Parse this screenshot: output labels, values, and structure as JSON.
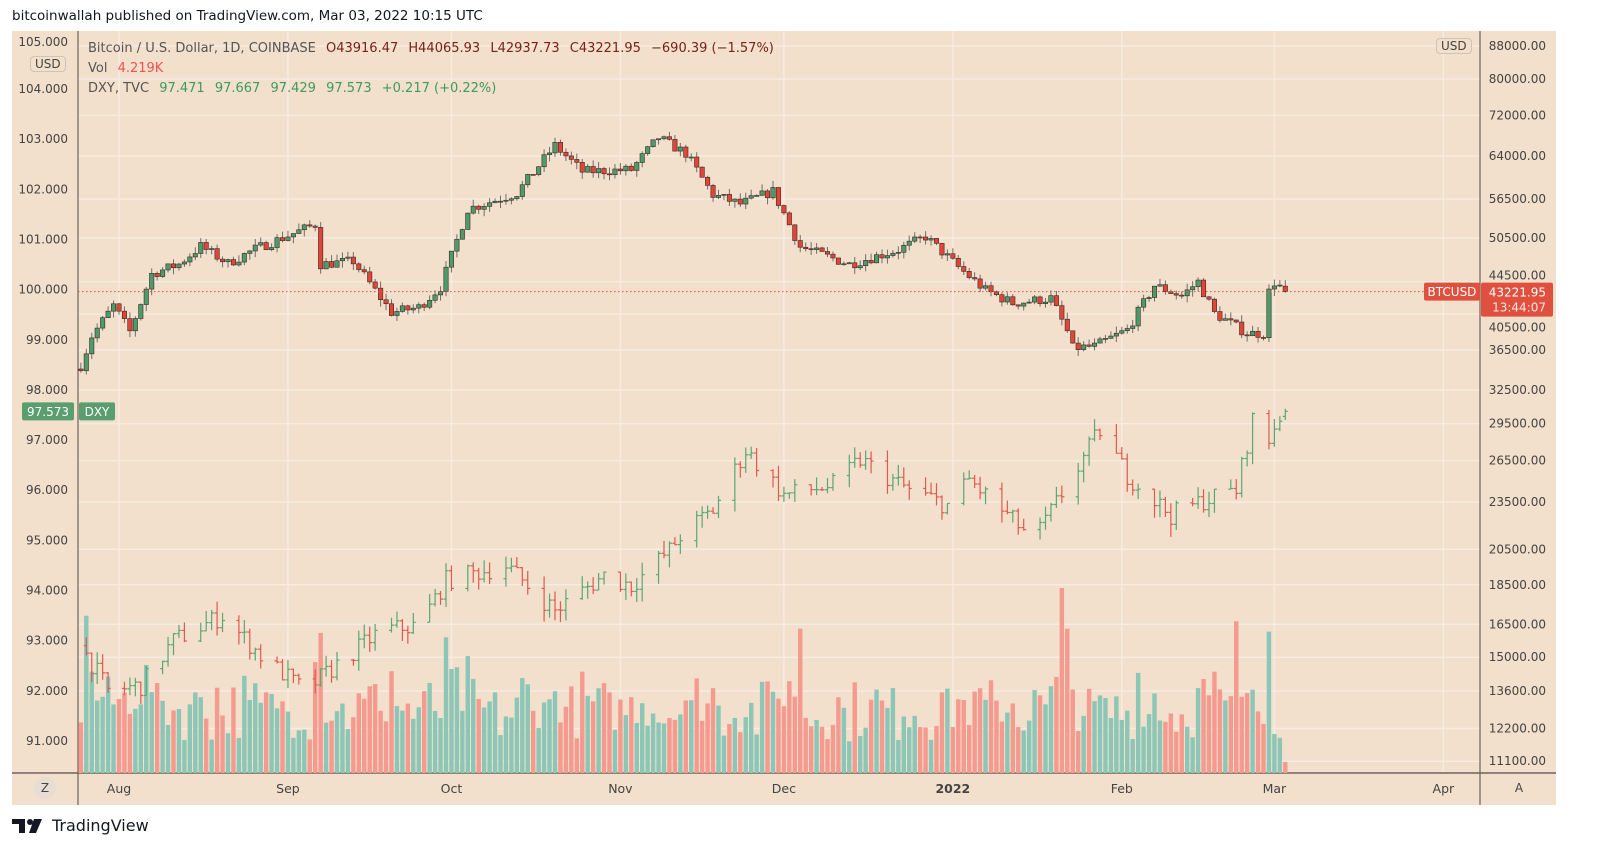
{
  "header": {
    "published": "bitcoinwallah published on TradingView.com, Mar 03, 2022 10:15 UTC"
  },
  "legend": {
    "btc_title": "Bitcoin / U.S. Dollar, 1D, COINBASE",
    "btc_o": "O43916.47",
    "btc_h": "H44065.93",
    "btc_l": "L42937.73",
    "btc_c": "C43221.95",
    "btc_chg": "−690.39 (−1.57%)",
    "vol_label": "Vol",
    "vol_value": "4.219K",
    "dxy_title": "DXY, TVC",
    "dxy_o": "97.471",
    "dxy_h": "97.667",
    "dxy_l": "97.429",
    "dxy_c": "97.573",
    "dxy_chg": "+0.217 (+0.22%)"
  },
  "scale_labels": {
    "left_currency": "USD",
    "right_currency": "USD",
    "z_button": "Z",
    "a_button": "A"
  },
  "price_labels": {
    "btc_symbol": "BTCUSD",
    "btc_last": "43221.95",
    "btc_countdown": "13:44:07",
    "dxy_last": "97.573",
    "dxy_symbol": "DXY"
  },
  "footer": {
    "brand": "TradingView"
  },
  "colors": {
    "bg": "#f2dfcc",
    "up": "#4d9b6b",
    "down": "#e0453a",
    "vol_up": "#8cc6b6",
    "vol_down": "#f49a8e",
    "dxy_up": "#5aa872",
    "dxy_down": "#e05a4f",
    "last": "#e0503f"
  },
  "chart_data": {
    "type": "candlestick",
    "start_date": "2021-07-25",
    "end_date": "2022-03-03",
    "x_ticks": [
      {
        "label": "Aug",
        "day": 7
      },
      {
        "label": "Sep",
        "day": 38
      },
      {
        "label": "Oct",
        "day": 68
      },
      {
        "label": "Nov",
        "day": 99
      },
      {
        "label": "Dec",
        "day": 129
      },
      {
        "label": "2022",
        "day": 160
      },
      {
        "label": "Feb",
        "day": 191
      },
      {
        "label": "Mar",
        "day": 219
      },
      {
        "label": "Apr",
        "day": 250
      }
    ],
    "left_axis": {
      "name": "DXY",
      "ticks": [
        "105.000",
        "104.000",
        "103.000",
        "102.000",
        "101.000",
        "100.000",
        "99.000",
        "98.000",
        "97.000",
        "96.000",
        "95.000",
        "94.000",
        "93.000",
        "92.000",
        "91.000"
      ],
      "range": [
        90.4,
        105.2
      ]
    },
    "right_axis": {
      "name": "BTCUSD",
      "scale": "log",
      "ticks": [
        "88000.00",
        "80000.00",
        "72000.00",
        "64000.00",
        "56500.00",
        "50500.00",
        "44500.00",
        "40500.00",
        "36500.00",
        "32500.00",
        "29500.00",
        "26500.00",
        "23500.00",
        "20500.00",
        "18500.00",
        "16500.00",
        "15000.00",
        "13600.00",
        "12200.00",
        "11100.00"
      ]
    },
    "btc_close_anchors": [
      [
        0,
        34900
      ],
      [
        2,
        38000
      ],
      [
        6,
        41500
      ],
      [
        9,
        38500
      ],
      [
        13,
        45500
      ],
      [
        18,
        46800
      ],
      [
        22,
        49300
      ],
      [
        27,
        46900
      ],
      [
        32,
        48900
      ],
      [
        43,
        52500
      ],
      [
        44,
        46800
      ],
      [
        50,
        47200
      ],
      [
        57,
        40700
      ],
      [
        62,
        41300
      ],
      [
        66,
        43800
      ],
      [
        71,
        54900
      ],
      [
        80,
        57500
      ],
      [
        87,
        66000
      ],
      [
        92,
        61200
      ],
      [
        101,
        61500
      ],
      [
        106,
        67500
      ],
      [
        111,
        64500
      ],
      [
        116,
        57200
      ],
      [
        121,
        55700
      ],
      [
        127,
        57800
      ],
      [
        132,
        49200
      ],
      [
        141,
        46800
      ],
      [
        150,
        48800
      ],
      [
        155,
        50700
      ],
      [
        161,
        46400
      ],
      [
        166,
        43400
      ],
      [
        171,
        41800
      ],
      [
        178,
        42400
      ],
      [
        181,
        38500
      ],
      [
        182,
        36700
      ],
      [
        186,
        36900
      ],
      [
        192,
        38700
      ],
      [
        197,
        44000
      ],
      [
        202,
        42700
      ],
      [
        205,
        44500
      ],
      [
        208,
        40600
      ],
      [
        214,
        38300
      ],
      [
        217,
        38300
      ],
      [
        218,
        43200
      ],
      [
        219,
        44400
      ],
      [
        220,
        43900
      ],
      [
        221,
        43221.95
      ]
    ],
    "dxy_close_anchors": [
      [
        0,
        92.9
      ],
      [
        5,
        92.0
      ],
      [
        11,
        92.1
      ],
      [
        17,
        93.0
      ],
      [
        26,
        93.5
      ],
      [
        33,
        92.7
      ],
      [
        41,
        92.0
      ],
      [
        48,
        92.6
      ],
      [
        55,
        93.2
      ],
      [
        62,
        93.3
      ],
      [
        67,
        94.2
      ],
      [
        78,
        94.5
      ],
      [
        87,
        93.6
      ],
      [
        96,
        94.3
      ],
      [
        101,
        94.1
      ],
      [
        108,
        94.8
      ],
      [
        110,
        95.1
      ],
      [
        116,
        95.6
      ],
      [
        122,
        96.8
      ],
      [
        129,
        95.9
      ],
      [
        138,
        96.1
      ],
      [
        143,
        96.6
      ],
      [
        152,
        96.0
      ],
      [
        159,
        95.7
      ],
      [
        163,
        96.2
      ],
      [
        173,
        95.2
      ],
      [
        176,
        95.2
      ],
      [
        187,
        97.2
      ],
      [
        192,
        96.3
      ],
      [
        200,
        95.5
      ],
      [
        206,
        95.8
      ],
      [
        212,
        96.0
      ],
      [
        215,
        97.4
      ],
      [
        217,
        96.6
      ],
      [
        219,
        97.3
      ],
      [
        221,
        97.573
      ]
    ],
    "volume_note": "volume histogram relative units",
    "volume_spikes": [
      [
        1,
        0.85
      ],
      [
        43,
        0.6
      ],
      [
        57,
        0.55
      ],
      [
        132,
        0.78
      ],
      [
        180,
        1.0
      ],
      [
        181,
        0.78
      ],
      [
        212,
        0.82
      ],
      [
        215,
        0.45
      ]
    ]
  }
}
